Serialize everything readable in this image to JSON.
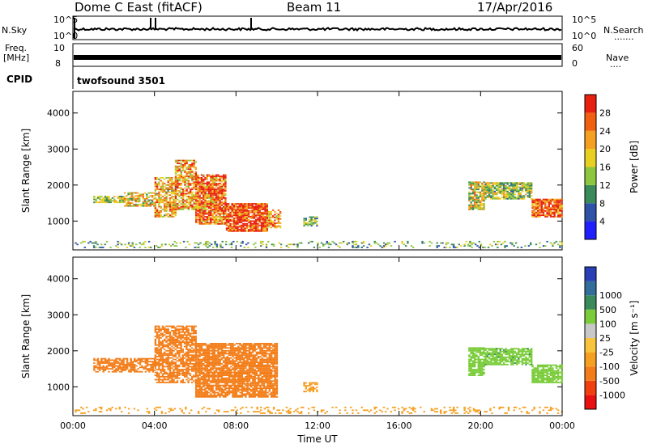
{
  "header": {
    "station": "Dome C East (fitACF)",
    "beam": "Beam 11",
    "date": "17/Apr/2016"
  },
  "aux_panels": {
    "nsky_label": "N.Sky",
    "nsky_ticks": [
      "10^5",
      "10^0"
    ],
    "nsearch_label": "N.Search",
    "nsearch_ticks": [
      "10^5",
      "10^0"
    ],
    "nsearch_dots": "·······",
    "freq_label_1": "Freq.",
    "freq_label_2": "[MHz]",
    "freq_ticks": [
      "10",
      "8"
    ],
    "nave_label": "Nave",
    "nave_dots": "····",
    "nave_ticks": [
      "60",
      "0"
    ],
    "cpid_label": "CPID",
    "cpid_value": "twofsound  3501"
  },
  "colors": {
    "power": [
      "#1f1fff",
      "#2d52a8",
      "#3a8a5a",
      "#8fc640",
      "#e8d020",
      "#f5a020",
      "#f06010",
      "#e82010"
    ],
    "velocity": [
      "#e81010",
      "#f04010",
      "#f37d18",
      "#f5a020",
      "#f7c43c",
      "#c8c8c8",
      "#7acc3a",
      "#3a8a5a",
      "#336e9a",
      "#2a3fb5"
    ]
  },
  "chart_data": [
    {
      "type": "heatmap",
      "panel": "power",
      "ylabel": "Slant Range [km]",
      "yticks": [
        1000,
        2000,
        3000,
        4000
      ],
      "ylim": [
        200,
        4600
      ],
      "xlim": [
        0,
        24
      ],
      "xticks": [
        "00:00",
        "04:00",
        "08:00",
        "12:00",
        "16:00",
        "20:00",
        "00:00"
      ],
      "colorbar_label": "Power [dB]",
      "colorbar_ticks": [
        "4",
        "8",
        "12",
        "16",
        "20",
        "24",
        "28"
      ],
      "colorbar_range": [
        0,
        32
      ],
      "regions": [
        {
          "t0": 0.0,
          "t1": 24.0,
          "r0": 250,
          "r1": 450,
          "value": 12,
          "density": 0.22
        },
        {
          "t0": 1.0,
          "t1": 2.5,
          "r0": 1500,
          "r1": 1700,
          "value": 15,
          "density": 0.7
        },
        {
          "t0": 2.5,
          "t1": 4.0,
          "r0": 1400,
          "r1": 1800,
          "value": 18,
          "density": 0.75
        },
        {
          "t0": 4.0,
          "t1": 5.0,
          "r0": 1100,
          "r1": 2200,
          "value": 20,
          "density": 0.7
        },
        {
          "t0": 5.0,
          "t1": 6.0,
          "r0": 1300,
          "r1": 2700,
          "value": 22,
          "density": 0.7
        },
        {
          "t0": 6.0,
          "t1": 7.5,
          "r0": 900,
          "r1": 2300,
          "value": 26,
          "density": 0.85
        },
        {
          "t0": 7.5,
          "t1": 9.5,
          "r0": 700,
          "r1": 1500,
          "value": 30,
          "density": 0.9
        },
        {
          "t0": 9.5,
          "t1": 10.2,
          "r0": 800,
          "r1": 1300,
          "value": 24,
          "density": 0.75
        },
        {
          "t0": 11.3,
          "t1": 12.0,
          "r0": 850,
          "r1": 1100,
          "value": 12,
          "density": 0.7
        },
        {
          "t0": 19.4,
          "t1": 20.2,
          "r0": 1300,
          "r1": 2100,
          "value": 17,
          "density": 0.8
        },
        {
          "t0": 20.2,
          "t1": 22.5,
          "r0": 1600,
          "r1": 2050,
          "value": 15,
          "density": 0.8
        },
        {
          "t0": 22.5,
          "t1": 24.0,
          "r0": 1100,
          "r1": 1600,
          "value": 28,
          "density": 0.85
        }
      ]
    },
    {
      "type": "heatmap",
      "panel": "velocity",
      "ylabel": "Slant Range [km]",
      "yticks": [
        1000,
        2000,
        3000,
        4000
      ],
      "ylim": [
        200,
        4600
      ],
      "xlim": [
        0,
        24
      ],
      "xticks": [
        "00:00",
        "04:00",
        "08:00",
        "12:00",
        "16:00",
        "20:00",
        "00:00"
      ],
      "xlabel": "Time UT",
      "colorbar_label": "Velocity [m s⁻¹]",
      "colorbar_ticks": [
        "-1000",
        "-500",
        "-100",
        "-25",
        "25",
        "100",
        "500",
        "1000"
      ],
      "regions": [
        {
          "t0": 0.0,
          "t1": 24.0,
          "r0": 250,
          "r1": 450,
          "value": -60,
          "density": 0.22
        },
        {
          "t0": 1.0,
          "t1": 4.0,
          "r0": 1400,
          "r1": 1800,
          "value": -150,
          "density": 0.7
        },
        {
          "t0": 4.0,
          "t1": 6.0,
          "r0": 1100,
          "r1": 2700,
          "value": -300,
          "density": 0.7
        },
        {
          "t0": 6.0,
          "t1": 10.0,
          "r0": 700,
          "r1": 2200,
          "value": -250,
          "density": 0.85
        },
        {
          "t0": 11.3,
          "t1": 12.0,
          "r0": 850,
          "r1": 1100,
          "value": -80,
          "density": 0.6
        },
        {
          "t0": 19.4,
          "t1": 20.2,
          "r0": 1300,
          "r1": 2100,
          "value": 300,
          "density": 0.8
        },
        {
          "t0": 20.2,
          "t1": 22.5,
          "r0": 1600,
          "r1": 2050,
          "value": 400,
          "density": 0.8
        },
        {
          "t0": 22.5,
          "t1": 24.0,
          "r0": 1100,
          "r1": 1600,
          "value": 200,
          "density": 0.85
        }
      ]
    }
  ]
}
